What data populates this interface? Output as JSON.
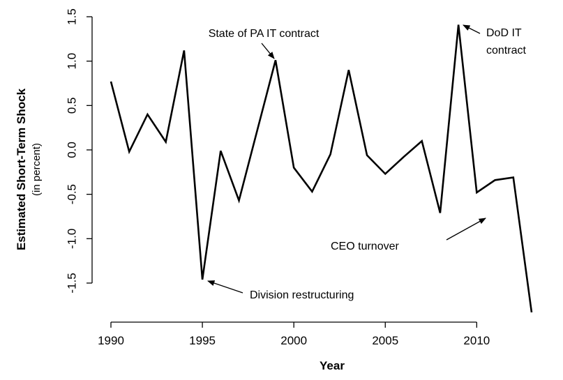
{
  "chart_data": {
    "type": "line",
    "y_label": "Estimated Short-Term Shock",
    "y_sublabel": "(in percent)",
    "x_label": "Year",
    "x": [
      1990,
      1991,
      1992,
      1993,
      1994,
      1995,
      1996,
      1997,
      1998,
      1999,
      2000,
      2001,
      2002,
      2003,
      2004,
      2005,
      2006,
      2007,
      2008,
      2009,
      2010,
      2011,
      2012,
      2013
    ],
    "values": [
      0.77,
      -0.02,
      0.4,
      0.09,
      1.12,
      -1.46,
      -0.01,
      -0.57,
      0.22,
      1.01,
      -0.2,
      -0.47,
      -0.05,
      0.9,
      -0.06,
      -0.27,
      -0.08,
      0.1,
      -0.71,
      1.41,
      -0.48,
      -0.34,
      -0.31,
      -1.83
    ],
    "color": "#000000",
    "xlim": [
      1990,
      2013
    ],
    "xticks": [
      1990,
      1995,
      2000,
      2005,
      2010
    ],
    "ylim": [
      -1.94,
      1.5
    ],
    "yticks": [
      1.5,
      {
        "value": 1.0,
        "label": "1.0"
      },
      0.5,
      {
        "value": 0.0,
        "label": "0.0"
      },
      -0.5,
      {
        "value": -1.0,
        "label": "-1.0"
      },
      -1.5
    ],
    "annotations": [
      "State of PA IT contract",
      "DoD IT",
      "contract",
      "CEO turnover",
      "Division restructuring"
    ]
  }
}
